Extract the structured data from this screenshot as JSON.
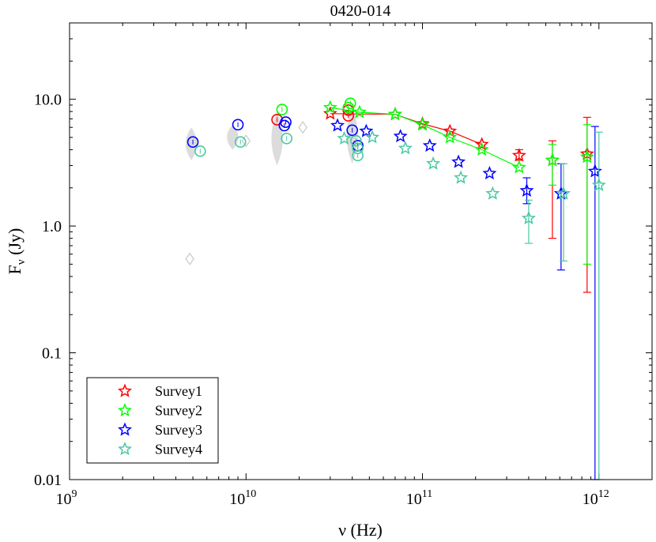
{
  "chart_data": {
    "type": "scatter",
    "title": "0420-014",
    "xlabel": "ν (Hz)",
    "ylabel": "Fν (Jy)",
    "xscale": "log",
    "yscale": "log",
    "xlim": [
      1000000000.0,
      2000000000000.0
    ],
    "ylim": [
      0.01,
      40
    ],
    "x_ticks": [
      {
        "value": 1000000000.0,
        "base": "10",
        "exp": "9"
      },
      {
        "value": 10000000000.0,
        "base": "10",
        "exp": "10"
      },
      {
        "value": 100000000000.0,
        "base": "10",
        "exp": "11"
      },
      {
        "value": 1000000000000.0,
        "base": "10",
        "exp": "12"
      }
    ],
    "y_ticks": [
      {
        "value": 10,
        "label": "10.0"
      },
      {
        "value": 1,
        "label": "1.0"
      },
      {
        "value": 0.1,
        "label": "0.1"
      },
      {
        "value": 0.01,
        "label": "0.01"
      }
    ],
    "legend_position": "bottom-left",
    "series": [
      {
        "name": "Survey1",
        "color": "#ff0000",
        "points": [
          [
            30000000000.0,
            7.7
          ],
          [
            70000000000.0,
            7.6
          ],
          [
            100000000000.0,
            6.4
          ],
          [
            143000000000.0,
            5.6
          ],
          [
            217000000000.0,
            4.4
          ],
          [
            353000000000.0,
            3.6
          ],
          [
            545000000000.0,
            3.3
          ],
          [
            857000000000.0,
            3.7
          ]
        ],
        "err_low": [
          0,
          0,
          0,
          0,
          0,
          0.3,
          2.5,
          3.4
        ],
        "err_high": [
          0,
          0,
          0,
          0,
          0,
          0.4,
          1.4,
          3.5
        ],
        "line_to": 4
      },
      {
        "name": "Survey2",
        "color": "#00ff00",
        "points": [
          [
            30000000000.0,
            8.6
          ],
          [
            44000000000.0,
            7.9
          ],
          [
            70000000000.0,
            7.6
          ],
          [
            100000000000.0,
            6.3
          ],
          [
            143000000000.0,
            5.0
          ],
          [
            217000000000.0,
            4.0
          ],
          [
            353000000000.0,
            2.9
          ],
          [
            545000000000.0,
            3.3
          ],
          [
            857000000000.0,
            3.5
          ]
        ],
        "err_low": [
          0,
          0,
          0,
          0,
          0,
          0,
          0,
          1.2,
          3.0
        ],
        "err_high": [
          0,
          0,
          0,
          0,
          0,
          0,
          0,
          1.1,
          2.8
        ],
        "line_to": 6
      },
      {
        "name": "Survey3",
        "color": "#0000ff",
        "points": [
          [
            33000000000.0,
            6.2
          ],
          [
            48000000000.0,
            5.6
          ],
          [
            75000000000.0,
            5.1
          ],
          [
            110000000000.0,
            4.3
          ],
          [
            160000000000.0,
            3.2
          ],
          [
            240000000000.0,
            2.6
          ],
          [
            390000000000.0,
            1.9
          ],
          [
            610000000000.0,
            1.8
          ],
          [
            950000000000.0,
            2.7
          ]
        ],
        "err_low": [
          0,
          0,
          0,
          0,
          0,
          0,
          0.4,
          1.35,
          2.69
        ],
        "err_high": [
          0,
          0,
          0,
          0,
          0,
          0,
          0.5,
          1.3,
          3.4
        ]
      },
      {
        "name": "Survey4",
        "color": "#48c9a3",
        "points": [
          [
            36000000000.0,
            4.9
          ],
          [
            52000000000.0,
            5.0
          ],
          [
            80000000000.0,
            4.1
          ],
          [
            115000000000.0,
            3.1
          ],
          [
            165000000000.0,
            2.4
          ],
          [
            250000000000.0,
            1.8
          ],
          [
            400000000000.0,
            1.15
          ],
          [
            630000000000.0,
            1.8
          ],
          [
            1000000000000.0,
            2.1
          ]
        ],
        "err_low": [
          0,
          0,
          0,
          0,
          0,
          0,
          0.42,
          1.27,
          2.09
        ],
        "err_high": [
          0,
          0,
          0,
          0,
          0,
          0,
          0.45,
          1.3,
          3.4
        ]
      }
    ],
    "circles": [
      {
        "color": "#ff0000",
        "points": [
          [
            15000000000.0,
            6.9
          ],
          [
            38000000000.0,
            7.4
          ],
          [
            38000000000.0,
            8.2
          ]
        ]
      },
      {
        "color": "#00ff00",
        "points": [
          [
            16000000000.0,
            8.3
          ],
          [
            38000000000.0,
            8.6
          ],
          [
            39000000000.0,
            9.3
          ]
        ]
      },
      {
        "color": "#0000ff",
        "points": [
          [
            5000000000.0,
            4.6
          ],
          [
            9000000000.0,
            6.3
          ],
          [
            16500000000.0,
            6.2
          ],
          [
            16800000000.0,
            6.6
          ],
          [
            40000000000.0,
            5.7
          ],
          [
            43000000000.0,
            4.3
          ]
        ]
      },
      {
        "color": "#48c9a3",
        "points": [
          [
            5500000000.0,
            3.9
          ],
          [
            9300000000.0,
            4.6
          ],
          [
            17000000000.0,
            4.9
          ],
          [
            42000000000.0,
            4.7
          ],
          [
            43000000000.0,
            4.1
          ],
          [
            43000000000.0,
            3.6
          ]
        ]
      }
    ],
    "grey_diamonds": [
      [
        4800000000.0,
        0.55
      ],
      [
        10000000000.0,
        4.7
      ],
      [
        21000000000.0,
        6.0
      ]
    ],
    "grey_bands": [
      {
        "x": 4900000000.0,
        "lo": 3.3,
        "hi": 6.0
      },
      {
        "x": 8400000000.0,
        "lo": 4.0,
        "hi": 6.3
      },
      {
        "x": 15000000000.0,
        "lo": 3.0,
        "hi": 8.0
      },
      {
        "x": 40000000000.0,
        "lo": 3.1,
        "hi": 8.6
      }
    ]
  }
}
